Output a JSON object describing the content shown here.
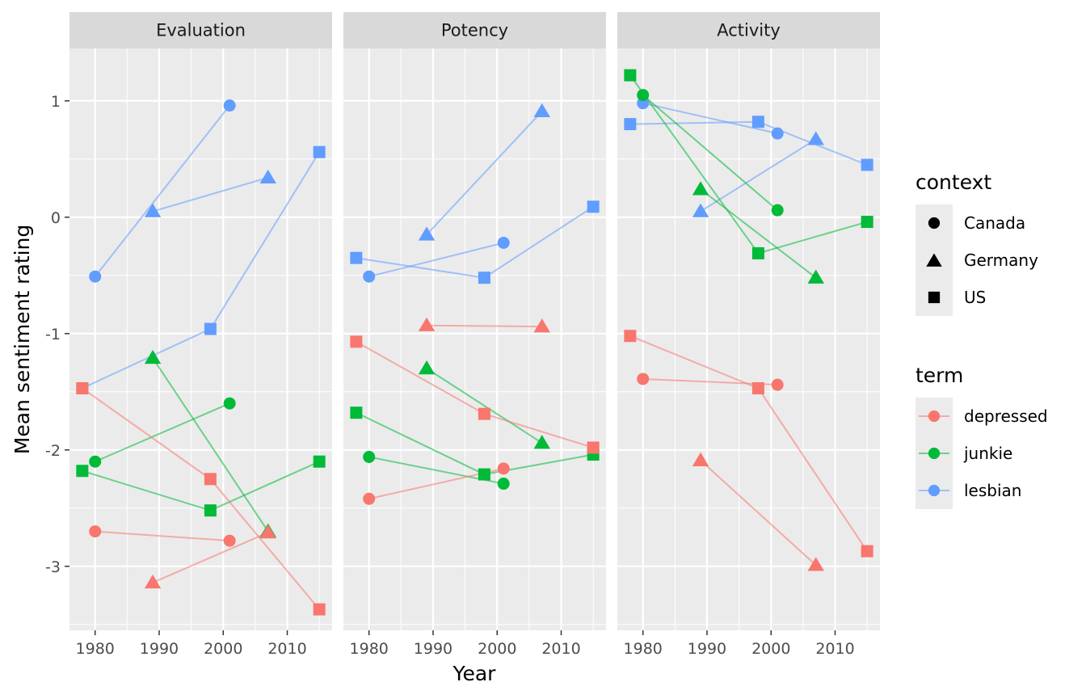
{
  "chart_data": {
    "type": "scatter",
    "xlabel": "Year",
    "ylabel": "Mean sentiment rating",
    "xlim": [
      1976,
      2017
    ],
    "ylim": [
      -3.55,
      1.45
    ],
    "xticks": [
      1980,
      1990,
      2000,
      2010
    ],
    "yticks": [
      1,
      0,
      -1,
      -2,
      -3
    ],
    "ytick_labels": [
      "1",
      "0",
      "-1",
      "-2",
      "-3"
    ],
    "grid": true,
    "legend_position": "right",
    "facets": [
      "Evaluation",
      "Potency",
      "Activity"
    ],
    "legends": {
      "context": {
        "title": "context",
        "entries": [
          {
            "label": "Canada",
            "shape": "circle"
          },
          {
            "label": "Germany",
            "shape": "triangle"
          },
          {
            "label": "US",
            "shape": "square"
          }
        ]
      },
      "term": {
        "title": "term",
        "entries": [
          {
            "label": "depressed",
            "color": "#F8766D"
          },
          {
            "label": "junkie",
            "color": "#00BA38"
          },
          {
            "label": "lesbian",
            "color": "#619CFF"
          }
        ]
      }
    },
    "series": [
      {
        "facet": "Evaluation",
        "term": "lesbian",
        "context": "Canada",
        "points": [
          [
            1980,
            -0.51
          ],
          [
            2001,
            0.96
          ]
        ]
      },
      {
        "facet": "Evaluation",
        "term": "lesbian",
        "context": "Germany",
        "points": [
          [
            1989,
            0.05
          ],
          [
            2007,
            0.34
          ]
        ]
      },
      {
        "facet": "Evaluation",
        "term": "lesbian",
        "context": "US",
        "points": [
          [
            1978,
            -1.47
          ],
          [
            1998,
            -0.96
          ],
          [
            2015,
            0.56
          ]
        ]
      },
      {
        "facet": "Evaluation",
        "term": "junkie",
        "context": "Canada",
        "points": [
          [
            1980,
            -2.1
          ],
          [
            2001,
            -1.6
          ]
        ]
      },
      {
        "facet": "Evaluation",
        "term": "junkie",
        "context": "Germany",
        "points": [
          [
            1989,
            -1.21
          ],
          [
            2007,
            -2.7
          ]
        ]
      },
      {
        "facet": "Evaluation",
        "term": "junkie",
        "context": "US",
        "points": [
          [
            1978,
            -2.18
          ],
          [
            1998,
            -2.52
          ],
          [
            2015,
            -2.1
          ]
        ]
      },
      {
        "facet": "Evaluation",
        "term": "depressed",
        "context": "Canada",
        "points": [
          [
            1980,
            -2.7
          ],
          [
            2001,
            -2.78
          ]
        ]
      },
      {
        "facet": "Evaluation",
        "term": "depressed",
        "context": "Germany",
        "points": [
          [
            1989,
            -3.14
          ],
          [
            2007,
            -2.71
          ]
        ]
      },
      {
        "facet": "Evaluation",
        "term": "depressed",
        "context": "US",
        "points": [
          [
            1978,
            -1.47
          ],
          [
            1998,
            -2.25
          ],
          [
            2015,
            -3.37
          ]
        ]
      },
      {
        "facet": "Potency",
        "term": "lesbian",
        "context": "Canada",
        "points": [
          [
            1980,
            -0.51
          ],
          [
            2001,
            -0.22
          ]
        ]
      },
      {
        "facet": "Potency",
        "term": "lesbian",
        "context": "Germany",
        "points": [
          [
            1989,
            -0.15
          ],
          [
            2007,
            0.91
          ]
        ]
      },
      {
        "facet": "Potency",
        "term": "lesbian",
        "context": "US",
        "points": [
          [
            1978,
            -0.35
          ],
          [
            1998,
            -0.52
          ],
          [
            2015,
            0.09
          ]
        ]
      },
      {
        "facet": "Potency",
        "term": "junkie",
        "context": "Canada",
        "points": [
          [
            1980,
            -2.06
          ],
          [
            2001,
            -2.29
          ]
        ]
      },
      {
        "facet": "Potency",
        "term": "junkie",
        "context": "Germany",
        "points": [
          [
            1989,
            -1.3
          ],
          [
            2007,
            -1.94
          ]
        ]
      },
      {
        "facet": "Potency",
        "term": "junkie",
        "context": "US",
        "points": [
          [
            1978,
            -1.68
          ],
          [
            1998,
            -2.21
          ],
          [
            2015,
            -2.04
          ]
        ]
      },
      {
        "facet": "Potency",
        "term": "depressed",
        "context": "Canada",
        "points": [
          [
            1980,
            -2.42
          ],
          [
            2001,
            -2.16
          ]
        ]
      },
      {
        "facet": "Potency",
        "term": "depressed",
        "context": "Germany",
        "points": [
          [
            1989,
            -0.93
          ],
          [
            2007,
            -0.94
          ]
        ]
      },
      {
        "facet": "Potency",
        "term": "depressed",
        "context": "US",
        "points": [
          [
            1978,
            -1.07
          ],
          [
            1998,
            -1.69
          ],
          [
            2015,
            -1.98
          ]
        ]
      },
      {
        "facet": "Activity",
        "term": "lesbian",
        "context": "Canada",
        "points": [
          [
            1980,
            0.98
          ],
          [
            2001,
            0.72
          ]
        ]
      },
      {
        "facet": "Activity",
        "term": "lesbian",
        "context": "Germany",
        "points": [
          [
            1989,
            0.05
          ],
          [
            2007,
            0.67
          ]
        ]
      },
      {
        "facet": "Activity",
        "term": "lesbian",
        "context": "US",
        "points": [
          [
            1978,
            0.8
          ],
          [
            1998,
            0.82
          ],
          [
            2015,
            0.45
          ]
        ]
      },
      {
        "facet": "Activity",
        "term": "junkie",
        "context": "Canada",
        "points": [
          [
            1980,
            1.05
          ],
          [
            2001,
            0.06
          ]
        ]
      },
      {
        "facet": "Activity",
        "term": "junkie",
        "context": "Germany",
        "points": [
          [
            1989,
            0.24
          ],
          [
            2007,
            -0.52
          ]
        ]
      },
      {
        "facet": "Activity",
        "term": "junkie",
        "context": "US",
        "points": [
          [
            1978,
            1.22
          ],
          [
            1998,
            -0.31
          ],
          [
            2015,
            -0.04
          ]
        ]
      },
      {
        "facet": "Activity",
        "term": "depressed",
        "context": "Canada",
        "points": [
          [
            1980,
            -1.39
          ],
          [
            2001,
            -1.44
          ]
        ]
      },
      {
        "facet": "Activity",
        "term": "depressed",
        "context": "Germany",
        "points": [
          [
            1989,
            -2.09
          ],
          [
            2007,
            -2.99
          ]
        ]
      },
      {
        "facet": "Activity",
        "term": "depressed",
        "context": "US",
        "points": [
          [
            1978,
            -1.02
          ],
          [
            1998,
            -1.47
          ],
          [
            2015,
            -2.87
          ]
        ]
      }
    ]
  }
}
